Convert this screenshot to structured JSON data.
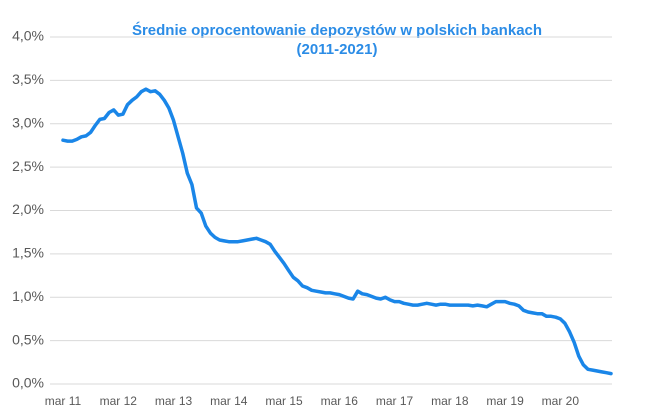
{
  "chart_data": {
    "type": "line",
    "title": "Średnie oprocentowanie depozystów w polskich bankach",
    "subtitle": "(2011-2021)",
    "categories": [
      "mar 11",
      null,
      null,
      null,
      null,
      null,
      null,
      null,
      null,
      null,
      null,
      null,
      "mar 12",
      null,
      null,
      null,
      null,
      null,
      null,
      null,
      null,
      null,
      null,
      null,
      "mar 13",
      null,
      null,
      null,
      null,
      null,
      null,
      null,
      null,
      null,
      null,
      null,
      "mar 14",
      null,
      null,
      null,
      null,
      null,
      null,
      null,
      null,
      null,
      null,
      null,
      "mar 15",
      null,
      null,
      null,
      null,
      null,
      null,
      null,
      null,
      null,
      null,
      null,
      "mar 16",
      null,
      null,
      null,
      null,
      null,
      null,
      null,
      null,
      null,
      null,
      null,
      "mar 17",
      null,
      null,
      null,
      null,
      null,
      null,
      null,
      null,
      null,
      null,
      null,
      "mar 18",
      null,
      null,
      null,
      null,
      null,
      null,
      null,
      null,
      null,
      null,
      null,
      "mar 19",
      null,
      null,
      null,
      null,
      null,
      null,
      null,
      null,
      null,
      null,
      null,
      "mar 20",
      null,
      null,
      null,
      null,
      null,
      null,
      null,
      null,
      null,
      null,
      null
    ],
    "series": [
      {
        "color": "#1a86e8",
        "values": [
          2.81,
          2.8,
          2.8,
          2.82,
          2.85,
          2.86,
          2.9,
          2.98,
          3.05,
          3.06,
          3.13,
          3.16,
          3.1,
          3.11,
          3.22,
          3.27,
          3.31,
          3.37,
          3.4,
          3.37,
          3.38,
          3.34,
          3.27,
          3.18,
          3.04,
          2.85,
          2.66,
          2.43,
          2.3,
          2.03,
          1.97,
          1.82,
          1.74,
          1.69,
          1.66,
          1.65,
          1.64,
          1.64,
          1.64,
          1.65,
          1.66,
          1.67,
          1.68,
          1.66,
          1.64,
          1.61,
          1.53,
          1.46,
          1.39,
          1.31,
          1.23,
          1.19,
          1.13,
          1.11,
          1.08,
          1.07,
          1.06,
          1.05,
          1.05,
          1.04,
          1.03,
          1.01,
          0.99,
          0.98,
          1.07,
          1.04,
          1.03,
          1.01,
          0.99,
          0.98,
          1.0,
          0.97,
          0.95,
          0.95,
          0.93,
          0.92,
          0.91,
          0.91,
          0.92,
          0.93,
          0.92,
          0.91,
          0.92,
          0.92,
          0.91,
          0.91,
          0.91,
          0.91,
          0.91,
          0.9,
          0.91,
          0.9,
          0.89,
          0.92,
          0.95,
          0.95,
          0.95,
          0.93,
          0.92,
          0.9,
          0.85,
          0.83,
          0.82,
          0.81,
          0.81,
          0.78,
          0.78,
          0.77,
          0.75,
          0.7,
          0.6,
          0.48,
          0.32,
          0.22,
          0.17,
          0.16,
          0.15,
          0.14,
          0.13,
          0.12
        ]
      }
    ],
    "ylim": [
      0,
      4
    ],
    "yticks": [
      {
        "value": 0,
        "label": "0,0%"
      },
      {
        "value": 0.5,
        "label": "0,5%"
      },
      {
        "value": 1,
        "label": "1,0%"
      },
      {
        "value": 1.5,
        "label": "1,5%"
      },
      {
        "value": 2,
        "label": "2,0%"
      },
      {
        "value": 2.5,
        "label": "2,5%"
      },
      {
        "value": 3,
        "label": "3,0%"
      },
      {
        "value": 3.5,
        "label": "3,5%"
      },
      {
        "value": 4,
        "label": "4,0%"
      }
    ],
    "grid": true
  }
}
